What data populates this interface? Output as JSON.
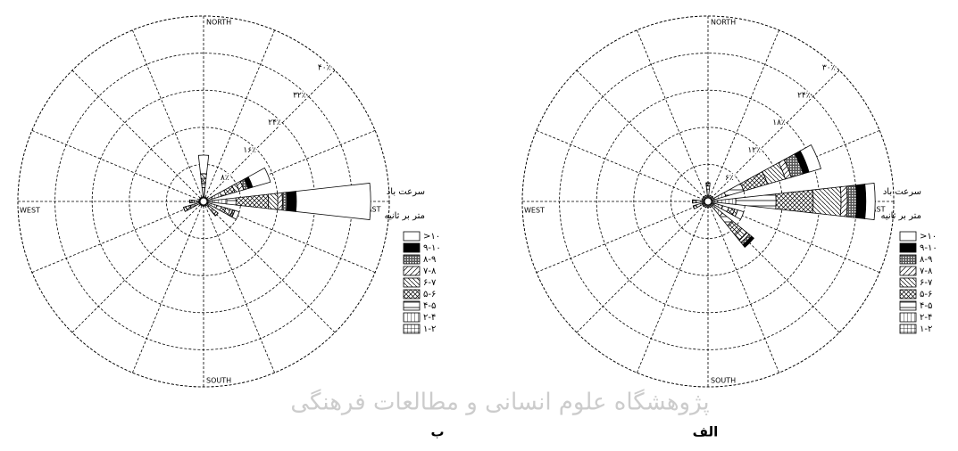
{
  "chart_data": [
    {
      "type": "wind-rose",
      "caption": "ب",
      "categories": [
        "NORTH",
        null,
        null,
        null,
        "EAST",
        null,
        null,
        null,
        "SOUTH",
        null,
        null,
        null,
        "WEST",
        null,
        null,
        null
      ],
      "ylim": [
        0,
        40
      ],
      "yticks": [
        {
          "value": 8,
          "label": "۸٪"
        },
        {
          "value": 16,
          "label": "۱۶٪"
        },
        {
          "value": 24,
          "label": "۲۴٪"
        },
        {
          "value": 32,
          "label": "۳۲٪"
        },
        {
          "value": 40,
          "label": "۴۰٪"
        }
      ],
      "legend_title": "سرعت باد",
      "legend_units": "متر بر ثانیه",
      "series": [
        {
          "name": "۱-۲",
          "pattern": "grid",
          "values": [
            1,
            0.5,
            0.5,
            2,
            2,
            1,
            0.5,
            0.5,
            0.5,
            0.5,
            0.5,
            1,
            1,
            0.5,
            0.5,
            0.5
          ]
        },
        {
          "name": "۲-۴",
          "pattern": "vertical",
          "values": [
            2,
            0.5,
            0.5,
            2,
            3,
            2,
            1,
            0.5,
            0.5,
            0.5,
            0.5,
            1,
            1,
            0.5,
            0.5,
            0.5
          ]
        },
        {
          "name": "۴-۵",
          "pattern": "horizontal",
          "values": [
            1,
            0,
            0,
            1,
            2,
            1,
            1,
            0,
            0,
            0,
            0,
            1,
            0.5,
            0,
            0,
            0
          ]
        },
        {
          "name": "۵-۶",
          "pattern": "cross",
          "values": [
            1,
            0,
            0,
            2,
            7,
            1,
            1,
            0,
            0,
            0,
            0,
            1,
            0.5,
            0,
            0,
            0
          ]
        },
        {
          "name": "۶-۷",
          "pattern": "back",
          "values": [
            1,
            0,
            0,
            1,
            2,
            1,
            0.5,
            0,
            0,
            0,
            0,
            0.5,
            0,
            0,
            0,
            0
          ]
        },
        {
          "name": "۷-۸",
          "pattern": "slash",
          "values": [
            0,
            0,
            0,
            1,
            1,
            0.5,
            0,
            0,
            0,
            0,
            0,
            0,
            0,
            0,
            0,
            0
          ]
        },
        {
          "name": "۸-۹",
          "pattern": "checker",
          "values": [
            0,
            0,
            0,
            1,
            1,
            0.5,
            0,
            0,
            0,
            0,
            0,
            0,
            0,
            0,
            0,
            0
          ]
        },
        {
          "name": "۹-۱۰",
          "pattern": "solid",
          "values": [
            0,
            0,
            0,
            1,
            2,
            0,
            0,
            0,
            0,
            0,
            0,
            0,
            0,
            0,
            0,
            0
          ]
        },
        {
          "name": ">۱۰",
          "pattern": "blank",
          "values": [
            4,
            0,
            0,
            4,
            16,
            1,
            0,
            0,
            0,
            0,
            0,
            0,
            0,
            0,
            0,
            0
          ]
        }
      ]
    },
    {
      "type": "wind-rose",
      "caption": "الف",
      "categories": [
        "NORTH",
        null,
        null,
        null,
        "EAST",
        null,
        null,
        null,
        "SOUTH",
        null,
        null,
        null,
        "WEST",
        null,
        null,
        null
      ],
      "ylim": [
        0,
        30
      ],
      "yticks": [
        {
          "value": 6,
          "label": "۶٪"
        },
        {
          "value": 12,
          "label": "۱۲٪"
        },
        {
          "value": 18,
          "label": "۱۸٪"
        },
        {
          "value": 24,
          "label": "۲۴٪"
        },
        {
          "value": 30,
          "label": "۳۰٪"
        }
      ],
      "legend_title": "سرعت باد",
      "legend_units": "متر بر ثانیه",
      "series": [
        {
          "name": "۱-۲",
          "pattern": "grid",
          "values": [
            1,
            0.5,
            0.5,
            1,
            1.5,
            1,
            1,
            0.5,
            0.5,
            0.5,
            0.5,
            1,
            1,
            0.5,
            0.5,
            0.5
          ]
        },
        {
          "name": "۲-۴",
          "pattern": "vertical",
          "values": [
            1,
            0.5,
            0.5,
            2,
            3,
            1.5,
            2,
            0.5,
            0.5,
            0.5,
            0.5,
            1,
            1,
            0.5,
            0.5,
            0.5
          ]
        },
        {
          "name": "۴-۵",
          "pattern": "horizontal",
          "values": [
            0.5,
            0,
            0,
            3,
            6.5,
            1,
            2,
            0,
            0,
            0,
            0,
            0.5,
            0.5,
            0,
            0,
            0
          ]
        },
        {
          "name": "۵-۶",
          "pattern": "cross",
          "values": [
            0.5,
            0,
            0,
            4,
            6,
            1,
            2,
            0,
            0,
            0,
            0,
            0,
            0,
            0,
            0,
            0
          ]
        },
        {
          "name": "۶-۷",
          "pattern": "back",
          "values": [
            0,
            0,
            0,
            3,
            4.5,
            0.5,
            1,
            0,
            0,
            0,
            0,
            0,
            0,
            0,
            0,
            0
          ]
        },
        {
          "name": "۷-۸",
          "pattern": "slash",
          "values": [
            0,
            0,
            0,
            1,
            1,
            0,
            0.5,
            0,
            0,
            0,
            0,
            0,
            0,
            0,
            0,
            0
          ]
        },
        {
          "name": "۸-۹",
          "pattern": "checker",
          "values": [
            0,
            0,
            0,
            2,
            1.5,
            0,
            0.5,
            0,
            0,
            0,
            0,
            0,
            0,
            0,
            0,
            0
          ]
        },
        {
          "name": "۹-۱۰",
          "pattern": "solid",
          "values": [
            0,
            0,
            0,
            1,
            1.5,
            0,
            0.5,
            0,
            0,
            0,
            0,
            0,
            0,
            0,
            0,
            0
          ]
        },
        {
          "name": ">۱۰",
          "pattern": "blank",
          "values": [
            0,
            0,
            0,
            2,
            1.5,
            1,
            0,
            0,
            0,
            0,
            0,
            0,
            0,
            0,
            0,
            0
          ]
        }
      ]
    }
  ],
  "watermark": "پژوهشگاه علوم انسانی و مطالعات فرهنگی"
}
